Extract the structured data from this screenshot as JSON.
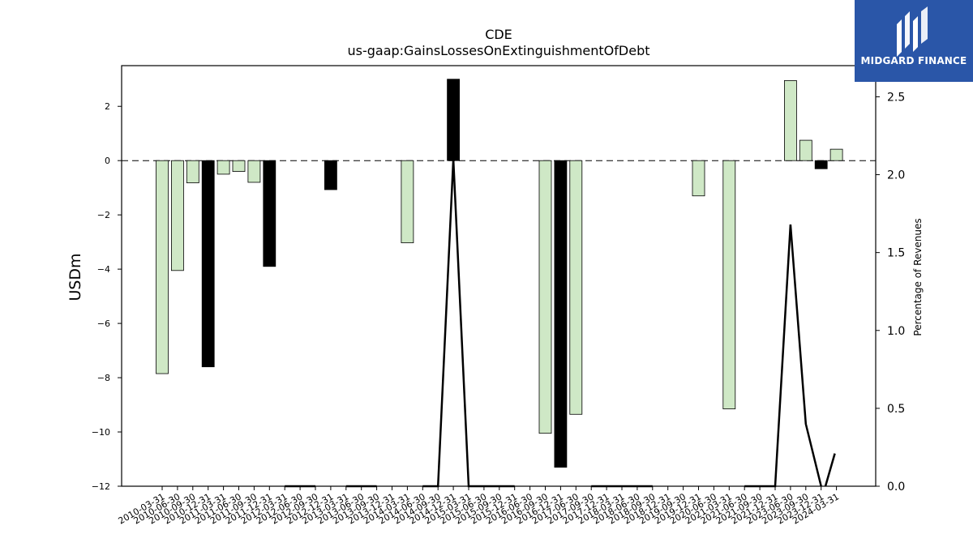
{
  "chart_data": {
    "type": "bar",
    "title": "CDE",
    "subtitle": "us-gaap:GainsLossesOnExtinguishmentOfDebt",
    "ylabel": "USDm",
    "y2label": "Percentage of Revenues",
    "ylim": [
      -12,
      3.5
    ],
    "y2lim": [
      0,
      2.7
    ],
    "yticks": [
      -12,
      -10,
      -8,
      -6,
      -4,
      -2,
      0,
      2
    ],
    "y2ticks": [
      0.0,
      0.5,
      1.0,
      1.5,
      2.0,
      2.5
    ],
    "grid": false,
    "categories": [
      "2010-03-31",
      "2010-06-30",
      "2010-09-30",
      "2010-12-31",
      "2011-03-31",
      "2011-06-30",
      "2011-09-30",
      "2011-12-31",
      "2012-03-31",
      "2012-06-30",
      "2012-09-30",
      "2012-12-31",
      "2013-03-31",
      "2013-06-30",
      "2013-09-30",
      "2013-12-31",
      "2014-03-31",
      "2014-06-30",
      "2014-09-30",
      "2014-12-31",
      "2015-03-31",
      "2015-06-30",
      "2015-09-30",
      "2015-12-31",
      "2016-06-30",
      "2016-09-30",
      "2016-12-31",
      "2017-06-30",
      "2017-09-30",
      "2017-12-31",
      "2018-03-31",
      "2018-06-30",
      "2018-09-30",
      "2018-12-31",
      "2019-09-30",
      "2019-12-31",
      "2020-06-30",
      "2021-03-31",
      "2021-06-30",
      "2021-09-30",
      "2021-12-31",
      "2023-06-30",
      "2023-09-30",
      "2023-12-31",
      "2024-03-31"
    ],
    "series": [
      {
        "type": "bar",
        "values": [
          -7.85,
          -4.05,
          -0.82,
          -7.6,
          -0.5,
          -0.4,
          -0.8,
          -3.9,
          0,
          0,
          0,
          -1.07,
          0,
          0,
          0,
          0,
          -3.03,
          0,
          0,
          3.0,
          0,
          0,
          0,
          0,
          0,
          -10.05,
          -11.3,
          -9.35,
          0,
          0,
          0,
          0,
          0,
          0,
          0,
          -1.3,
          0,
          -9.15,
          0,
          0,
          0,
          2.95,
          0.75,
          -0.3,
          0.42
        ],
        "colors": [
          "#cfe8c6",
          "#cfe8c6",
          "#cfe8c6",
          "#000000",
          "#cfe8c6",
          "#cfe8c6",
          "#cfe8c6",
          "#000000",
          "#cfe8c6",
          "#cfe8c6",
          "#cfe8c6",
          "#000000",
          "#cfe8c6",
          "#cfe8c6",
          "#cfe8c6",
          "#cfe8c6",
          "#cfe8c6",
          "#cfe8c6",
          "#cfe8c6",
          "#000000",
          "#cfe8c6",
          "#cfe8c6",
          "#cfe8c6",
          "#cfe8c6",
          "#cfe8c6",
          "#cfe8c6",
          "#000000",
          "#cfe8c6",
          "#cfe8c6",
          "#cfe8c6",
          "#cfe8c6",
          "#cfe8c6",
          "#cfe8c6",
          "#cfe8c6",
          "#cfe8c6",
          "#cfe8c6",
          "#cfe8c6",
          "#cfe8c6",
          "#cfe8c6",
          "#cfe8c6",
          "#cfe8c6",
          "#cfe8c6",
          "#cfe8c6",
          "#000000",
          "#cfe8c6"
        ]
      },
      {
        "type": "line",
        "axis": "right",
        "color": "#000000",
        "values": [
          null,
          null,
          null,
          null,
          null,
          null,
          null,
          null,
          0,
          0,
          0,
          null,
          0,
          0,
          0,
          null,
          null,
          0,
          0,
          2.1,
          0,
          0,
          0,
          0,
          null,
          null,
          null,
          null,
          0,
          0,
          0,
          0,
          0,
          null,
          null,
          0,
          null,
          null,
          0,
          0,
          0,
          1.68,
          0.4,
          0,
          null
        ]
      }
    ]
  },
  "brand": {
    "name": "MIDGARD FINANCE",
    "color": "#2a56a8"
  }
}
